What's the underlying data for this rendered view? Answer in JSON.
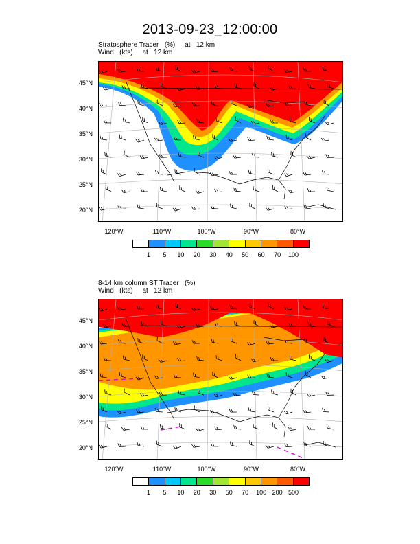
{
  "title": "2013-09-23_12:00:00",
  "panels": [
    {
      "title_line1": "Stratosphere Tracer   (%)     at   12 km",
      "title_line2": "Wind   (kts)     at   12 km",
      "lat_labels": [
        "45°N",
        "40°N",
        "35°N",
        "30°N",
        "25°N",
        "20°N"
      ],
      "lon_labels": [
        "120°W",
        "110°W",
        "100°W",
        "90°W",
        "80°W"
      ],
      "colorbar_labels": [
        "1",
        "5",
        "10",
        "20",
        "30",
        "40",
        "50",
        "60",
        "70",
        "100"
      ],
      "colors": [
        "#ffffff",
        "#1e90ff",
        "#00c8ff",
        "#00e68c",
        "#28dc28",
        "#a0e632",
        "#ffff00",
        "#ffc800",
        "#ff9600",
        "#ff5a00",
        "#ff0000"
      ]
    },
    {
      "title_line1": "8-14 km column ST Tracer   (%)",
      "title_line2": "Wind   (kts)     at   12 km",
      "lat_labels": [
        "45°N",
        "40°N",
        "35°N",
        "30°N",
        "25°N",
        "20°N"
      ],
      "lon_labels": [
        "120°W",
        "110°W",
        "100°W",
        "90°W",
        "80°W"
      ],
      "colorbar_labels": [
        "1",
        "5",
        "10",
        "20",
        "30",
        "50",
        "70",
        "100",
        "200",
        "500"
      ],
      "colors": [
        "#ffffff",
        "#1e90ff",
        "#00c8ff",
        "#00e68c",
        "#28dc28",
        "#a0e632",
        "#ffff00",
        "#ffc800",
        "#ff9600",
        "#ff5a00",
        "#ff0000"
      ]
    }
  ]
}
